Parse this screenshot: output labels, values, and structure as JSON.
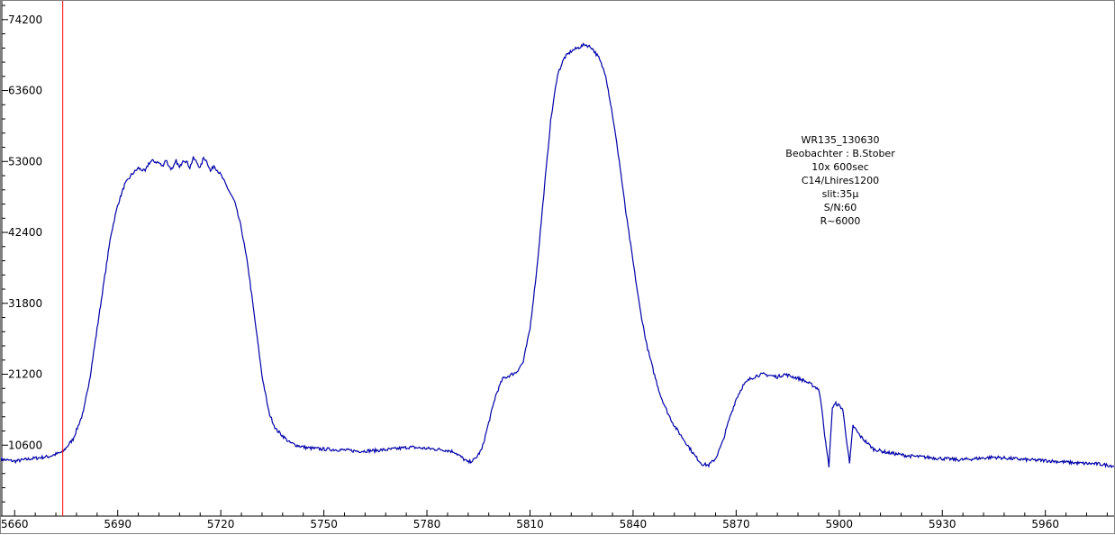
{
  "chart_data": {
    "type": "line",
    "title": "",
    "xlabel": "",
    "ylabel": "",
    "xlim": [
      5656,
      5980
    ],
    "ylim": [
      0,
      77000
    ],
    "x_ticks": [
      5660,
      5690,
      5720,
      5750,
      5780,
      5810,
      5840,
      5870,
      5900,
      5930,
      5960
    ],
    "y_ticks": [
      10600,
      21200,
      31800,
      42400,
      53000,
      63600,
      74200
    ],
    "grid": false,
    "colors": {
      "series": "#0000a8",
      "marker": "#ff0000",
      "axis": "#000000",
      "border": "#7f7f7f"
    },
    "marker_line": {
      "x": 5674
    },
    "annotation_lines": [
      "WR135_130630",
      "Beobachter : B.Stober",
      "10x 600sec",
      "C14/Lhires1200",
      "slit:35µ",
      "S/N:60",
      "R~6000"
    ],
    "series": [
      {
        "points": [
          [
            5656,
            8500
          ],
          [
            5660,
            8200
          ],
          [
            5665,
            8600
          ],
          [
            5670,
            8900
          ],
          [
            5674,
            9600
          ],
          [
            5677,
            11500
          ],
          [
            5680,
            15500
          ],
          [
            5682,
            21000
          ],
          [
            5684,
            28000
          ],
          [
            5686,
            35000
          ],
          [
            5688,
            42000
          ],
          [
            5690,
            46500
          ],
          [
            5692,
            49500
          ],
          [
            5694,
            51000
          ],
          [
            5696,
            52000
          ],
          [
            5698,
            51500
          ],
          [
            5699,
            52700
          ],
          [
            5700,
            53100
          ],
          [
            5702,
            52800
          ],
          [
            5703,
            52300
          ],
          [
            5704,
            53300
          ],
          [
            5705,
            52200
          ],
          [
            5706,
            51800
          ],
          [
            5707,
            53100
          ],
          [
            5708,
            52000
          ],
          [
            5709,
            53300
          ],
          [
            5710,
            53000
          ],
          [
            5711,
            52100
          ],
          [
            5712,
            53500
          ],
          [
            5713,
            52900
          ],
          [
            5714,
            52000
          ],
          [
            5715,
            53600
          ],
          [
            5716,
            53000
          ],
          [
            5717,
            51500
          ],
          [
            5718,
            52400
          ],
          [
            5720,
            51000
          ],
          [
            5722,
            49000
          ],
          [
            5724,
            47000
          ],
          [
            5726,
            43000
          ],
          [
            5728,
            37000
          ],
          [
            5730,
            29000
          ],
          [
            5732,
            21000
          ],
          [
            5734,
            15500
          ],
          [
            5736,
            13000
          ],
          [
            5738,
            12000
          ],
          [
            5740,
            11000
          ],
          [
            5742,
            10600
          ],
          [
            5745,
            10200
          ],
          [
            5750,
            10000
          ],
          [
            5755,
            9900
          ],
          [
            5760,
            9700
          ],
          [
            5765,
            9800
          ],
          [
            5770,
            10000
          ],
          [
            5775,
            10300
          ],
          [
            5780,
            10100
          ],
          [
            5785,
            9900
          ],
          [
            5788,
            9600
          ],
          [
            5790,
            8800
          ],
          [
            5792,
            8000
          ],
          [
            5794,
            8500
          ],
          [
            5796,
            10000
          ],
          [
            5798,
            14000
          ],
          [
            5800,
            18000
          ],
          [
            5802,
            20500
          ],
          [
            5804,
            21000
          ],
          [
            5806,
            21500
          ],
          [
            5808,
            23000
          ],
          [
            5810,
            28000
          ],
          [
            5812,
            37000
          ],
          [
            5814,
            48000
          ],
          [
            5816,
            59000
          ],
          [
            5818,
            66000
          ],
          [
            5820,
            68500
          ],
          [
            5822,
            69500
          ],
          [
            5824,
            70000
          ],
          [
            5826,
            70500
          ],
          [
            5828,
            70000
          ],
          [
            5830,
            68500
          ],
          [
            5832,
            66000
          ],
          [
            5834,
            60000
          ],
          [
            5836,
            53000
          ],
          [
            5838,
            45000
          ],
          [
            5840,
            38000
          ],
          [
            5842,
            31000
          ],
          [
            5844,
            25500
          ],
          [
            5846,
            21500
          ],
          [
            5848,
            18000
          ],
          [
            5850,
            15500
          ],
          [
            5852,
            13500
          ],
          [
            5854,
            12000
          ],
          [
            5856,
            10500
          ],
          [
            5858,
            9000
          ],
          [
            5860,
            7800
          ],
          [
            5862,
            7600
          ],
          [
            5864,
            8600
          ],
          [
            5866,
            11000
          ],
          [
            5868,
            14500
          ],
          [
            5870,
            17500
          ],
          [
            5872,
            19500
          ],
          [
            5874,
            20500
          ],
          [
            5876,
            21000
          ],
          [
            5878,
            21200
          ],
          [
            5880,
            21000
          ],
          [
            5882,
            20800
          ],
          [
            5884,
            21200
          ],
          [
            5886,
            20900
          ],
          [
            5888,
            20600
          ],
          [
            5890,
            20200
          ],
          [
            5892,
            19600
          ],
          [
            5894,
            19000
          ],
          [
            5895,
            16000
          ],
          [
            5896,
            11000
          ],
          [
            5897,
            7500
          ],
          [
            5898,
            16200
          ],
          [
            5899,
            16800
          ],
          [
            5900,
            16500
          ],
          [
            5901,
            16000
          ],
          [
            5902,
            12000
          ],
          [
            5903,
            7800
          ],
          [
            5904,
            13500
          ],
          [
            5905,
            12800
          ],
          [
            5906,
            12000
          ],
          [
            5908,
            11000
          ],
          [
            5910,
            10000
          ],
          [
            5914,
            9500
          ],
          [
            5920,
            9000
          ],
          [
            5925,
            8800
          ],
          [
            5930,
            8600
          ],
          [
            5935,
            8400
          ],
          [
            5940,
            8600
          ],
          [
            5945,
            8800
          ],
          [
            5950,
            8600
          ],
          [
            5955,
            8400
          ],
          [
            5960,
            8300
          ],
          [
            5965,
            8100
          ],
          [
            5970,
            7900
          ],
          [
            5975,
            7800
          ],
          [
            5980,
            7500
          ]
        ]
      }
    ]
  }
}
